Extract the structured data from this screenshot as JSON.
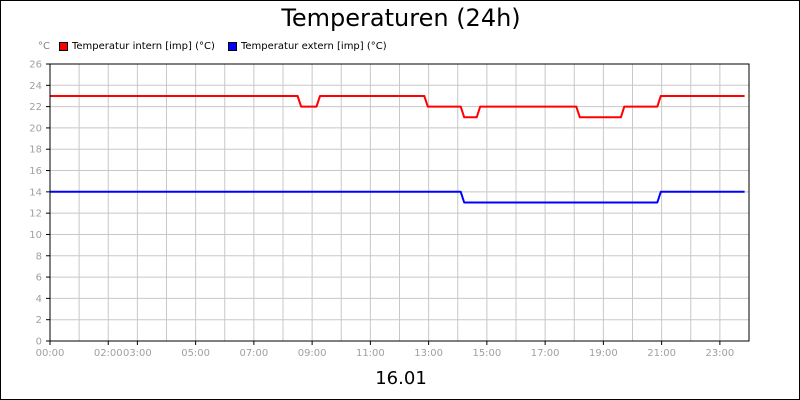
{
  "chart_data": {
    "type": "line",
    "title": "Temperaturen (24h)",
    "y_unit": "°C",
    "x_category": "16.01",
    "ylim": [
      0,
      26
    ],
    "y_ticks": [
      0,
      2,
      4,
      6,
      8,
      10,
      12,
      14,
      16,
      18,
      20,
      22,
      24,
      26
    ],
    "x_range_hours": [
      0,
      24
    ],
    "x_ticks": [
      {
        "hour": 0,
        "label": "00:00"
      },
      {
        "hour": 2,
        "label": "02:00"
      },
      {
        "hour": 3,
        "label": "03:00"
      },
      {
        "hour": 5,
        "label": "05:00"
      },
      {
        "hour": 7,
        "label": "07:00"
      },
      {
        "hour": 9,
        "label": "09:00"
      },
      {
        "hour": 11,
        "label": "11:00"
      },
      {
        "hour": 13,
        "label": "13:00"
      },
      {
        "hour": 15,
        "label": "15:00"
      },
      {
        "hour": 17,
        "label": "17:00"
      },
      {
        "hour": 19,
        "label": "19:00"
      },
      {
        "hour": 21,
        "label": "21:00"
      },
      {
        "hour": 23,
        "label": "23:00"
      }
    ],
    "grid": true,
    "legend_position": "top-left",
    "series": [
      {
        "name": "Temperatur intern [imp] (°C)",
        "color": "#ff0000",
        "points": [
          [
            0,
            23
          ],
          [
            8.5,
            23
          ],
          [
            8.62,
            22
          ],
          [
            9.15,
            22
          ],
          [
            9.27,
            23
          ],
          [
            12.85,
            23
          ],
          [
            12.97,
            22
          ],
          [
            14.1,
            22
          ],
          [
            14.22,
            21
          ],
          [
            14.65,
            21
          ],
          [
            14.77,
            22
          ],
          [
            18.07,
            22
          ],
          [
            18.19,
            21
          ],
          [
            19.6,
            21
          ],
          [
            19.72,
            22
          ],
          [
            20.85,
            22
          ],
          [
            20.97,
            23
          ],
          [
            23.85,
            23
          ]
        ]
      },
      {
        "name": "Temperatur extern [imp] (°C)",
        "color": "#0000ff",
        "points": [
          [
            0,
            14
          ],
          [
            14.1,
            14
          ],
          [
            14.22,
            13
          ],
          [
            20.85,
            13
          ],
          [
            20.97,
            14
          ],
          [
            23.85,
            14
          ]
        ]
      }
    ]
  }
}
